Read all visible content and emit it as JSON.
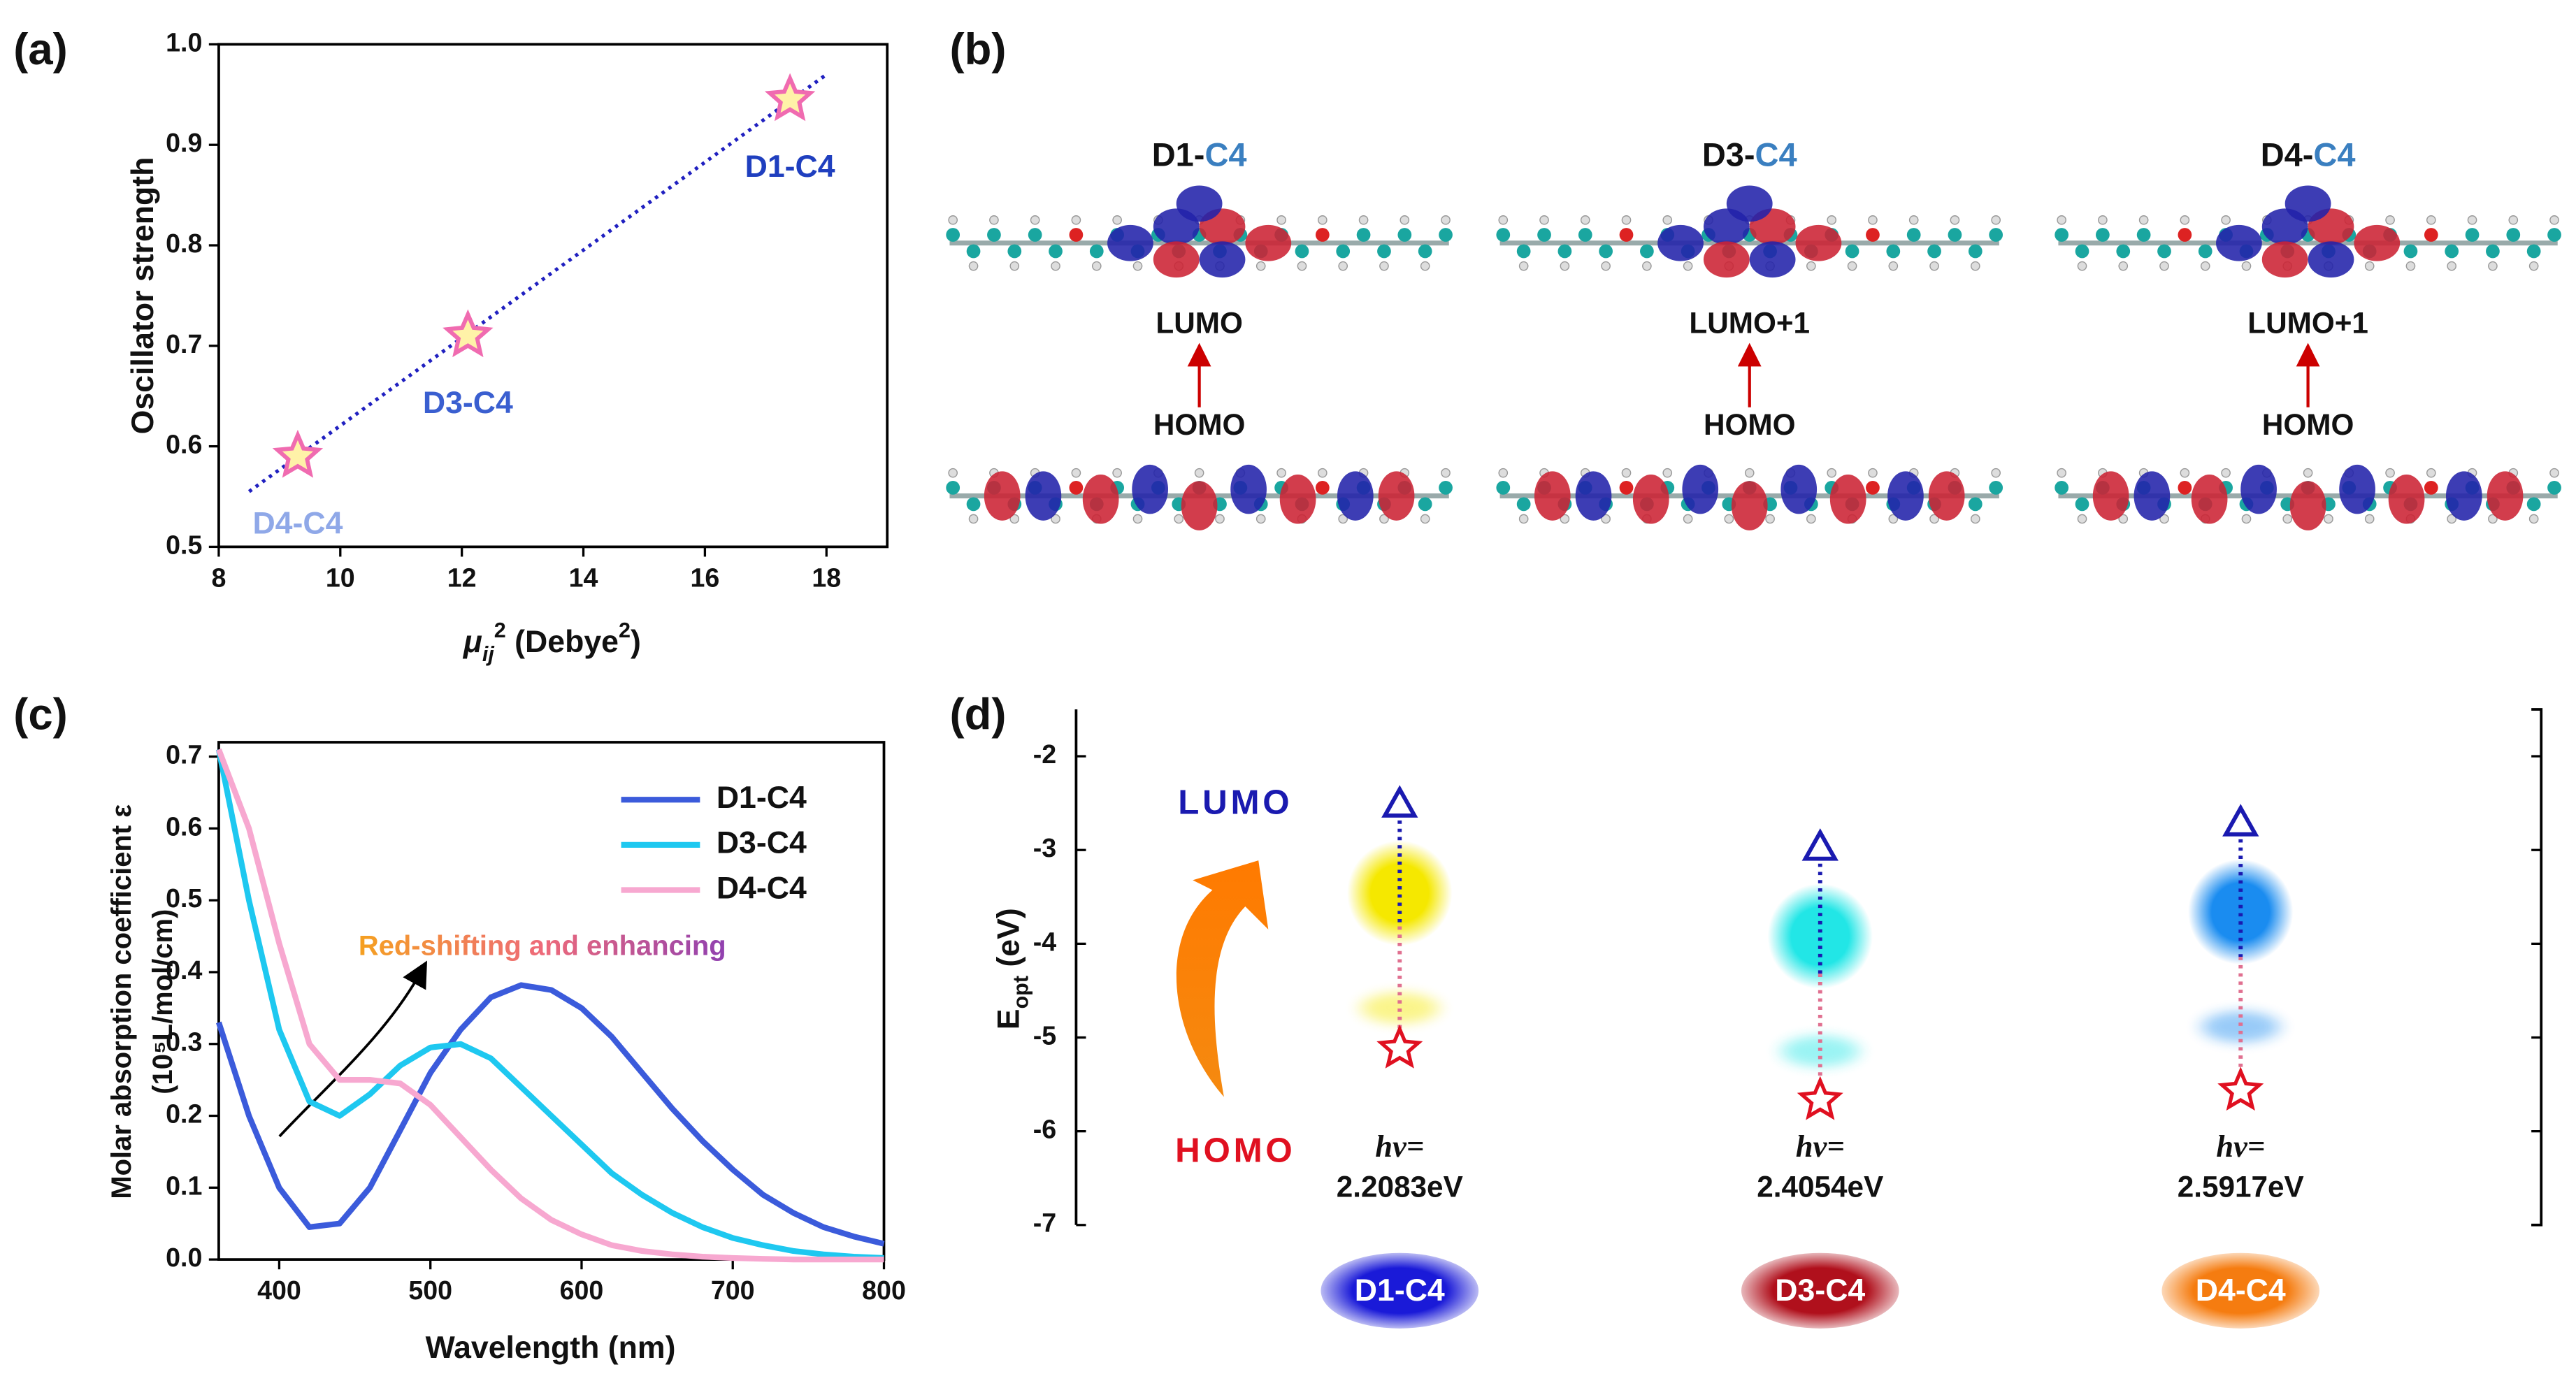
{
  "chart_data": [
    {
      "type": "scatter",
      "label": "(a)",
      "ylabel": "Oscillator strength",
      "xlabel_parts": [
        "μ",
        "ij",
        "2",
        " (Debye",
        "2",
        ")"
      ],
      "x": [
        9.3,
        12.1,
        17.4
      ],
      "y": [
        0.59,
        0.71,
        0.945
      ],
      "point_labels": [
        "D4-C4",
        "D3-C4",
        "D1-C4"
      ],
      "label_colors": [
        "#8fa8e8",
        "#3a5fd0",
        "#1f3fbf"
      ],
      "marker_color": "#f06bb0",
      "marker_fill": "#fff2a8",
      "trendline": {
        "x": [
          8.5,
          18
        ],
        "y": [
          0.555,
          0.97
        ],
        "color": "#2020c0"
      },
      "xlim": [
        8,
        19
      ],
      "xticks": [
        8,
        10,
        12,
        14,
        16,
        18
      ],
      "ylim": [
        0.5,
        1.0
      ],
      "yticks": [
        0.5,
        0.6,
        0.7,
        0.8,
        0.9,
        {
          "value": 1,
          "label": "1.0"
        }
      ]
    },
    {
      "type": "line",
      "label": "(c)",
      "ylabel": "Molar absorption coefficient ε",
      "ylabel2": "(10⁵L/mol/cm)",
      "xlabel": "Wavelength (nm)",
      "annotation": "Red-shifting and enhancing",
      "x": [
        360,
        380,
        400,
        420,
        440,
        460,
        480,
        500,
        520,
        540,
        560,
        580,
        600,
        620,
        640,
        660,
        680,
        700,
        720,
        740,
        760,
        780,
        800
      ],
      "series": [
        {
          "name": "D1-C4",
          "color": "#3b5bdb",
          "values": [
            0.33,
            0.2,
            0.1,
            0.045,
            0.05,
            0.1,
            0.18,
            0.26,
            0.32,
            0.365,
            0.382,
            0.375,
            0.35,
            0.31,
            0.26,
            0.21,
            0.165,
            0.125,
            0.09,
            0.065,
            0.045,
            0.032,
            0.022
          ]
        },
        {
          "name": "D3-C4",
          "color": "#1ec8f0",
          "values": [
            0.71,
            0.5,
            0.32,
            0.22,
            0.2,
            0.23,
            0.27,
            0.295,
            0.3,
            0.28,
            0.24,
            0.2,
            0.16,
            0.12,
            0.09,
            0.065,
            0.045,
            0.03,
            0.02,
            0.012,
            0.007,
            0.004,
            0.002
          ]
        },
        {
          "name": "D4-C4",
          "color": "#f7a8d0",
          "values": [
            0.71,
            0.6,
            0.44,
            0.3,
            0.25,
            0.25,
            0.245,
            0.215,
            0.17,
            0.125,
            0.085,
            0.055,
            0.035,
            0.02,
            0.012,
            0.007,
            0.004,
            0.002,
            0.001,
            0,
            0,
            0,
            0
          ]
        }
      ],
      "xlim": [
        360,
        800
      ],
      "xticks": [
        400,
        500,
        600,
        700,
        800
      ],
      "ylim": [
        0,
        0.72
      ],
      "yticks": [
        {
          "value": 0,
          "label": "0.0"
        },
        0.1,
        0.2,
        0.3,
        0.4,
        0.5,
        0.6,
        0.7
      ],
      "legend": "upper right"
    },
    {
      "type": "energy",
      "label": "(d)",
      "ylabel_parts": [
        "E",
        "opt",
        " (eV)"
      ],
      "categories": [
        "D1-C4",
        "D3-C4",
        "D4-C4"
      ],
      "series": [
        {
          "name": "LUMO",
          "color": "#1a1ab0",
          "values": [
            -2.51,
            -2.97,
            -2.71
          ]
        },
        {
          "name": "HOMO",
          "color": "#e01020",
          "values": [
            -5.12,
            -5.67,
            -5.57
          ]
        }
      ],
      "hv_prefix": "hν=",
      "hv_labels": [
        "2.2083eV",
        "2.4054eV",
        "2.5917eV"
      ],
      "glow_colors": [
        "#f5e800",
        "#22e6e6",
        "#1a8cf0"
      ],
      "badge_colors": [
        "#1a1ad8",
        "#b0101c",
        "#f57c10"
      ],
      "ylim": [
        -7,
        -1.5
      ],
      "yticks": [
        -2,
        -3,
        -4,
        -5,
        -6,
        -7
      ]
    }
  ],
  "diagram": {
    "label": "(b)",
    "molecules": [
      {
        "name": "D1-",
        "acceptor": "C4",
        "upper": "LUMO",
        "lower": "HOMO"
      },
      {
        "name": "D3-",
        "acceptor": "C4",
        "upper": "LUMO+1",
        "lower": "HOMO"
      },
      {
        "name": "D4-",
        "acceptor": "C4",
        "upper": "LUMO+1",
        "lower": "HOMO"
      }
    ]
  }
}
